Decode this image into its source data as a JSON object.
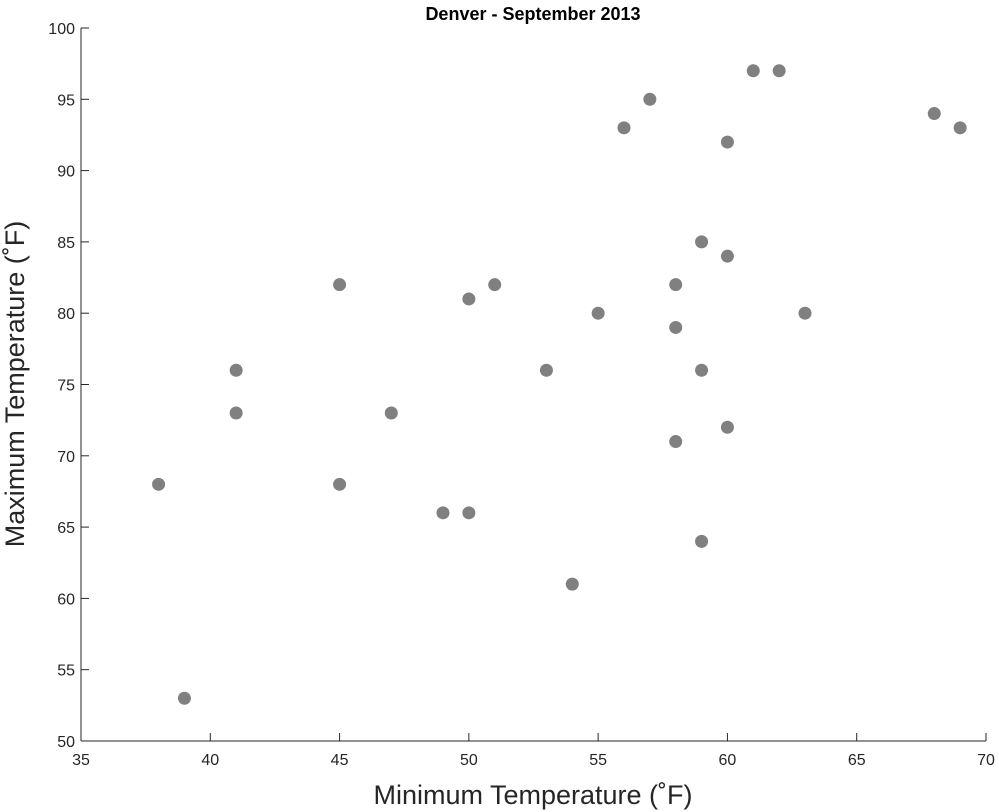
{
  "chart_data": {
    "type": "scatter",
    "title": "Denver - September 2013",
    "xlabel": "Minimum Temperature (˚F)",
    "ylabel": "Maximum Temperature (˚F)",
    "xlim": [
      35,
      70
    ],
    "ylim": [
      50,
      100
    ],
    "xticks": [
      "35",
      "40",
      "45",
      "50",
      "55",
      "60",
      "65",
      "70"
    ],
    "yticks": [
      "50",
      "55",
      "60",
      "65",
      "70",
      "75",
      "80",
      "85",
      "90",
      "95",
      "100"
    ],
    "grid": false,
    "marker_color": "#808080",
    "points": [
      {
        "x": 38,
        "y": 68
      },
      {
        "x": 39,
        "y": 53
      },
      {
        "x": 41,
        "y": 76
      },
      {
        "x": 41,
        "y": 73
      },
      {
        "x": 45,
        "y": 82
      },
      {
        "x": 45,
        "y": 68
      },
      {
        "x": 47,
        "y": 73
      },
      {
        "x": 49,
        "y": 66
      },
      {
        "x": 50,
        "y": 81
      },
      {
        "x": 50,
        "y": 66
      },
      {
        "x": 51,
        "y": 82
      },
      {
        "x": 53,
        "y": 76
      },
      {
        "x": 54,
        "y": 61
      },
      {
        "x": 55,
        "y": 80
      },
      {
        "x": 56,
        "y": 93
      },
      {
        "x": 57,
        "y": 95
      },
      {
        "x": 58,
        "y": 82
      },
      {
        "x": 58,
        "y": 79
      },
      {
        "x": 58,
        "y": 71
      },
      {
        "x": 59,
        "y": 85
      },
      {
        "x": 59,
        "y": 76
      },
      {
        "x": 59,
        "y": 64
      },
      {
        "x": 60,
        "y": 92
      },
      {
        "x": 60,
        "y": 84
      },
      {
        "x": 60,
        "y": 72
      },
      {
        "x": 61,
        "y": 97
      },
      {
        "x": 62,
        "y": 97
      },
      {
        "x": 63,
        "y": 80
      },
      {
        "x": 68,
        "y": 94
      },
      {
        "x": 69,
        "y": 93
      }
    ]
  }
}
